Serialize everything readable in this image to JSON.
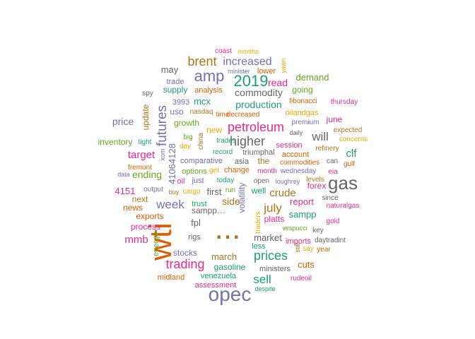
{
  "colors": {
    "teal": "#1b9e77",
    "orange": "#d95f02",
    "purple": "#7570b3",
    "magenta": "#e7298a",
    "green": "#66a61e",
    "gold": "#e6ab02",
    "brown": "#a6761d",
    "gray": "#666666"
  },
  "words": [
    {
      "text": "wti",
      "color": "orange",
      "size": 44
    },
    {
      "text": "...",
      "color": "brown",
      "size": 44
    },
    {
      "text": "opec",
      "color": "purple",
      "size": 28
    },
    {
      "text": "gas",
      "color": "gray",
      "size": 26
    },
    {
      "text": "amp",
      "color": "purple",
      "size": 22
    },
    {
      "text": "2019",
      "color": "teal",
      "size": 22
    },
    {
      "text": "futures",
      "color": "purple",
      "size": 19
    },
    {
      "text": "petroleum",
      "color": "magenta",
      "size": 18
    },
    {
      "text": "brent",
      "color": "brown",
      "size": 18
    },
    {
      "text": "trading",
      "color": "magenta",
      "size": 18
    },
    {
      "text": "prices",
      "color": "teal",
      "size": 18
    },
    {
      "text": "higher",
      "color": "gray",
      "size": 18
    },
    {
      "text": "week",
      "color": "purple",
      "size": 17
    },
    {
      "text": "increased",
      "color": "purple",
      "size": 16
    },
    {
      "text": "july",
      "color": "brown",
      "size": 17
    },
    {
      "text": "sell",
      "color": "teal",
      "size": 17
    },
    {
      "text": "will",
      "color": "gray",
      "size": 17
    },
    {
      "text": "target",
      "color": "magenta",
      "size": 15
    },
    {
      "text": "clf",
      "color": "teal",
      "size": 15
    },
    {
      "text": "mmb",
      "color": "magenta",
      "size": 15
    },
    {
      "text": "crude",
      "color": "brown",
      "size": 15
    },
    {
      "text": "price",
      "color": "purple",
      "size": 14
    },
    {
      "text": "commodity",
      "color": "gray",
      "size": 14
    },
    {
      "text": "production",
      "color": "teal",
      "size": 14
    },
    {
      "text": "read",
      "color": "magenta",
      "size": 14
    },
    {
      "text": "ending",
      "color": "green",
      "size": 14
    },
    {
      "text": "side",
      "color": "brown",
      "size": 14
    },
    {
      "text": "market",
      "color": "gray",
      "size": 13
    },
    {
      "text": "march",
      "color": "brown",
      "size": 13
    },
    {
      "text": "may",
      "color": "gray",
      "size": 13
    },
    {
      "text": "first",
      "color": "gray",
      "size": 13
    },
    {
      "text": "41064128",
      "color": "purple",
      "size": 13
    },
    {
      "text": "sampp",
      "color": "teal",
      "size": 13
    },
    {
      "text": "4151",
      "color": "magenta",
      "size": 13
    },
    {
      "text": "demand",
      "color": "green",
      "size": 13
    },
    {
      "text": "report",
      "color": "magenta",
      "size": 13
    },
    {
      "text": "cuts",
      "color": "orange",
      "size": 13
    },
    {
      "text": "mcx",
      "color": "teal",
      "size": 13
    },
    {
      "text": "fpl",
      "color": "gray",
      "size": 13
    },
    {
      "text": "process",
      "color": "magenta",
      "size": 12
    },
    {
      "text": "stocks",
      "color": "purple",
      "size": 12
    },
    {
      "text": "gasoline",
      "color": "teal",
      "size": 12
    },
    {
      "text": "update",
      "color": "brown",
      "size": 12
    },
    {
      "text": "uso",
      "color": "purple",
      "size": 12
    },
    {
      "text": "growth",
      "color": "green",
      "size": 12
    },
    {
      "text": "new",
      "color": "gold",
      "size": 12
    },
    {
      "text": "june",
      "color": "magenta",
      "size": 12
    },
    {
      "text": "inventory",
      "color": "green",
      "size": 12
    },
    {
      "text": "supply",
      "color": "teal",
      "size": 12
    },
    {
      "text": "going",
      "color": "green",
      "size": 12
    },
    {
      "text": "volatility",
      "color": "purple",
      "size": 12
    },
    {
      "text": "platts",
      "color": "magenta",
      "size": 12
    },
    {
      "text": "well",
      "color": "teal",
      "size": 12
    },
    {
      "text": "sampp…",
      "color": "gray",
      "size": 12
    },
    {
      "text": "exports",
      "color": "orange",
      "size": 12
    },
    {
      "text": "news",
      "color": "orange",
      "size": 12
    },
    {
      "text": "next",
      "color": "brown",
      "size": 12
    },
    {
      "text": "energy",
      "color": "green",
      "size": 11
    },
    {
      "text": "the",
      "color": "brown",
      "size": 12
    },
    {
      "text": "forex",
      "color": "magenta",
      "size": 12
    },
    {
      "text": "trust",
      "color": "teal",
      "size": 11
    },
    {
      "text": "just",
      "color": "purple",
      "size": 11
    },
    {
      "text": "oil",
      "color": "magenta",
      "size": 11
    },
    {
      "text": "rigs",
      "color": "gray",
      "size": 11
    },
    {
      "text": "midland",
      "color": "orange",
      "size": 11
    },
    {
      "text": "venezuela",
      "color": "teal",
      "size": 11
    },
    {
      "text": "assessment",
      "color": "magenta",
      "size": 11
    },
    {
      "text": "ministers",
      "color": "gray",
      "size": 11
    },
    {
      "text": "less",
      "color": "teal",
      "size": 11
    },
    {
      "text": "imports",
      "color": "magenta",
      "size": 11
    },
    {
      "text": "oilandgas",
      "color": "gold",
      "size": 11
    },
    {
      "text": "analysis",
      "color": "orange",
      "size": 11
    },
    {
      "text": "nasdaq",
      "color": "brown",
      "size": 10
    },
    {
      "text": "trade",
      "color": "purple",
      "size": 11
    },
    {
      "text": "3993",
      "color": "purple",
      "size": 11
    },
    {
      "text": "lower",
      "color": "orange",
      "size": 11
    },
    {
      "text": "session",
      "color": "magenta",
      "size": 11
    },
    {
      "text": "account",
      "color": "orange",
      "size": 11
    },
    {
      "text": "asia",
      "color": "gray",
      "size": 11
    },
    {
      "text": "triumphal",
      "color": "gray",
      "size": 11
    },
    {
      "text": "change",
      "color": "orange",
      "size": 11
    },
    {
      "text": "comparative",
      "color": "purple",
      "size": 11
    },
    {
      "text": "options",
      "color": "green",
      "size": 11
    },
    {
      "text": "fremont",
      "color": "orange",
      "size": 10
    },
    {
      "text": "output",
      "color": "purple",
      "size": 10
    },
    {
      "text": "commodities",
      "color": "orange",
      "size": 10
    },
    {
      "text": "open",
      "color": "gray",
      "size": 10
    },
    {
      "text": "since",
      "color": "gray",
      "size": 10
    },
    {
      "text": "naturalgas",
      "color": "magenta",
      "size": 10
    },
    {
      "text": "gold",
      "color": "magenta",
      "size": 10
    },
    {
      "text": "year",
      "color": "orange",
      "size": 10
    },
    {
      "text": "decreased",
      "color": "orange",
      "size": 10
    },
    {
      "text": "time",
      "color": "orange",
      "size": 10
    },
    {
      "text": "big",
      "color": "green",
      "size": 10
    },
    {
      "text": "day",
      "color": "gold",
      "size": 10
    },
    {
      "text": "china",
      "color": "brown",
      "size": 10
    },
    {
      "text": "trades",
      "color": "teal",
      "size": 10
    },
    {
      "text": "record",
      "color": "teal",
      "size": 10
    },
    {
      "text": "fibonacci",
      "color": "orange",
      "size": 10
    },
    {
      "text": "premium",
      "color": "purple",
      "size": 10
    },
    {
      "text": "thursday",
      "color": "magenta",
      "size": 10
    },
    {
      "text": "expected",
      "color": "brown",
      "size": 10
    },
    {
      "text": "concerns",
      "color": "gold",
      "size": 10
    },
    {
      "text": "gulf",
      "color": "orange",
      "size": 10
    },
    {
      "text": "refinery",
      "color": "brown",
      "size": 10
    },
    {
      "text": "can",
      "color": "gray",
      "size": 10
    },
    {
      "text": "eia",
      "color": "magenta",
      "size": 10
    },
    {
      "text": "levels",
      "color": "brown",
      "size": 10
    },
    {
      "text": "wednesday",
      "color": "purple",
      "size": 10
    },
    {
      "text": "month",
      "color": "magenta",
      "size": 10
    },
    {
      "text": "tight",
      "color": "teal",
      "size": 10
    },
    {
      "text": "spy",
      "color": "gray",
      "size": 10
    },
    {
      "text": "xom",
      "color": "purple",
      "size": 9
    },
    {
      "text": "data",
      "color": "purple",
      "size": 9
    },
    {
      "text": "buy",
      "color": "brown",
      "size": 9
    },
    {
      "text": "cargo",
      "color": "gold",
      "size": 10
    },
    {
      "text": "get",
      "color": "gold",
      "size": 10
    },
    {
      "text": "today",
      "color": "teal",
      "size": 10
    },
    {
      "text": "run",
      "color": "green",
      "size": 10
    },
    {
      "text": "vespucci",
      "color": "green",
      "size": 9
    },
    {
      "text": "key",
      "color": "gray",
      "size": 10
    },
    {
      "text": "daytradint",
      "color": "gray",
      "size": 10
    },
    {
      "text": "say",
      "color": "gold",
      "size": 10
    },
    {
      "text": "despite",
      "color": "teal",
      "size": 9
    },
    {
      "text": "rudeoil",
      "color": "magenta",
      "size": 10
    },
    {
      "text": "traders",
      "color": "gold",
      "size": 10
    },
    {
      "text": "coast",
      "color": "magenta",
      "size": 10
    },
    {
      "text": "months",
      "color": "gold",
      "size": 9
    },
    {
      "text": "minister",
      "color": "purple",
      "size": 9
    },
    {
      "text": "yawn",
      "color": "gold",
      "size": 9
    },
    {
      "text": "daily",
      "color": "gray",
      "size": 9
    },
    {
      "text": "loughrey",
      "color": "purple",
      "size": 9
    },
    {
      "text": "still",
      "color": "brown",
      "size": 9
    }
  ]
}
